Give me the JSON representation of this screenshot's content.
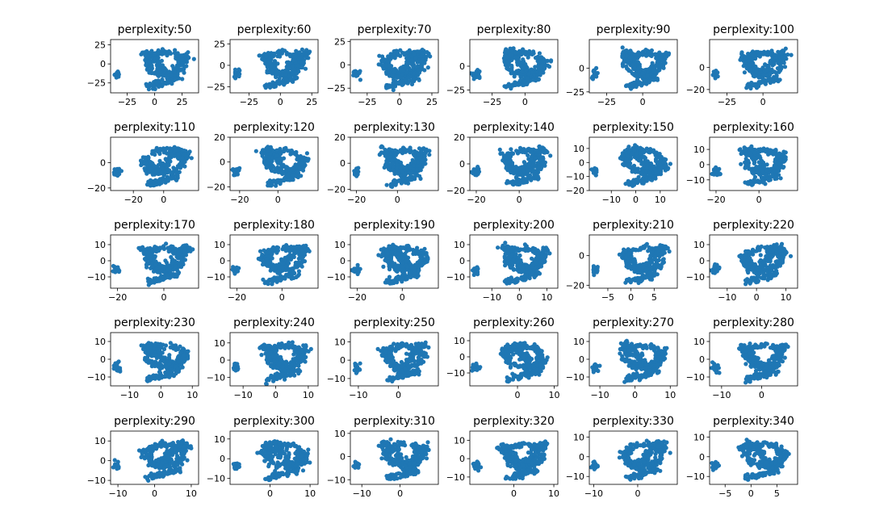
{
  "figure": {
    "background": "#ffffff",
    "marker_color": "#1f77b4"
  },
  "chart_data": [
    {
      "type": "scatter",
      "title": "perplexity:50",
      "xticks": [
        "−25",
        "0",
        "25"
      ],
      "yticks": [
        "25",
        "0",
        "−25"
      ],
      "xlim": [
        -40,
        40
      ],
      "ylim": [
        -38,
        32
      ],
      "seed": 50
    },
    {
      "type": "scatter",
      "title": "perplexity:60",
      "xticks": [
        "−25",
        "0",
        "25"
      ],
      "yticks": [
        "25",
        "0",
        "−25"
      ],
      "xlim": [
        -40,
        30
      ],
      "ylim": [
        -32,
        30
      ],
      "seed": 60
    },
    {
      "type": "scatter",
      "title": "perplexity:70",
      "xticks": [
        "−25",
        "0",
        "25"
      ],
      "yticks": [
        "25",
        "0",
        "−25"
      ],
      "xlim": [
        -38,
        30
      ],
      "ylim": [
        -30,
        27
      ],
      "seed": 70
    },
    {
      "type": "scatter",
      "title": "perplexity:80",
      "xticks": [
        "−25",
        "0"
      ],
      "yticks": [
        "0",
        "−25"
      ],
      "xlim": [
        -42,
        25
      ],
      "ylim": [
        -28,
        28
      ],
      "seed": 80
    },
    {
      "type": "scatter",
      "title": "perplexity:90",
      "xticks": [
        "−25",
        "0"
      ],
      "yticks": [
        "0",
        "−25"
      ],
      "xlim": [
        -37,
        24
      ],
      "ylim": [
        -26,
        30
      ],
      "seed": 90
    },
    {
      "type": "scatter",
      "title": "perplexity:100",
      "xticks": [
        "−25",
        "0"
      ],
      "yticks": [
        "0",
        "−20"
      ],
      "xlim": [
        -37,
        24
      ],
      "ylim": [
        -23,
        25
      ],
      "seed": 100
    },
    {
      "type": "scatter",
      "title": "perplexity:110",
      "xticks": [
        "−20",
        "0"
      ],
      "yticks": [
        "0",
        "−20"
      ],
      "xlim": [
        -35,
        23
      ],
      "ylim": [
        -22,
        20
      ],
      "seed": 110
    },
    {
      "type": "scatter",
      "title": "perplexity:120",
      "xticks": [
        "−20",
        "0"
      ],
      "yticks": [
        "20",
        "0",
        "−20"
      ],
      "xlim": [
        -25,
        21
      ],
      "ylim": [
        -23,
        20
      ],
      "seed": 120
    },
    {
      "type": "scatter",
      "title": "perplexity:130",
      "xticks": [
        "−20",
        "0"
      ],
      "yticks": [
        "20",
        "0",
        "−20"
      ],
      "xlim": [
        -23,
        20
      ],
      "ylim": [
        -21,
        20
      ],
      "seed": 130
    },
    {
      "type": "scatter",
      "title": "perplexity:140",
      "xticks": [
        "−20",
        "0"
      ],
      "yticks": [
        "20",
        "0",
        "−20"
      ],
      "xlim": [
        -23,
        18
      ],
      "ylim": [
        -20,
        20
      ],
      "seed": 140
    },
    {
      "type": "scatter",
      "title": "perplexity:150",
      "xticks": [
        "−10",
        "0",
        "10"
      ],
      "yticks": [
        "10",
        "0",
        "−10",
        "−20"
      ],
      "xlim": [
        -19,
        17
      ],
      "ylim": [
        -20,
        18
      ],
      "seed": 150
    },
    {
      "type": "scatter",
      "title": "perplexity:160",
      "xticks": [
        "−20",
        "0"
      ],
      "yticks": [
        "10",
        "0",
        "−10"
      ],
      "xlim": [
        -23,
        18
      ],
      "ylim": [
        -17,
        18
      ],
      "seed": 160
    },
    {
      "type": "scatter",
      "title": "perplexity:170",
      "xticks": [
        "−20",
        "0"
      ],
      "yticks": [
        "10",
        "0",
        "−10"
      ],
      "xlim": [
        -23,
        15
      ],
      "ylim": [
        -17,
        16
      ],
      "seed": 170
    },
    {
      "type": "scatter",
      "title": "perplexity:180",
      "xticks": [
        "−20",
        "0"
      ],
      "yticks": [
        "10",
        "0",
        "−10"
      ],
      "xlim": [
        -23,
        16
      ],
      "ylim": [
        -17,
        16
      ],
      "seed": 180
    },
    {
      "type": "scatter",
      "title": "perplexity:190",
      "xticks": [
        "−20",
        "0"
      ],
      "yticks": [
        "10",
        "0",
        "−10"
      ],
      "xlim": [
        -23,
        16
      ],
      "ylim": [
        -17,
        16
      ],
      "seed": 190
    },
    {
      "type": "scatter",
      "title": "perplexity:200",
      "xticks": [
        "−10",
        "0",
        "10"
      ],
      "yticks": [
        "10",
        "0",
        "−10"
      ],
      "xlim": [
        -18,
        14
      ],
      "ylim": [
        -17,
        16
      ],
      "seed": 200
    },
    {
      "type": "scatter",
      "title": "perplexity:210",
      "xticks": [
        "−5",
        "0",
        "5"
      ],
      "yticks": [
        "0",
        "−20"
      ],
      "xlim": [
        -9,
        10
      ],
      "ylim": [
        -22,
        14
      ],
      "seed": 210
    },
    {
      "type": "scatter",
      "title": "perplexity:220",
      "xticks": [
        "−10",
        "0",
        "10"
      ],
      "yticks": [
        "10",
        "0",
        "−10"
      ],
      "xlim": [
        -16,
        14
      ],
      "ylim": [
        -17,
        16
      ],
      "seed": 220
    },
    {
      "type": "scatter",
      "title": "perplexity:230",
      "xticks": [
        "−10",
        "0",
        "10"
      ],
      "yticks": [
        "10",
        "0",
        "−10"
      ],
      "xlim": [
        -16,
        12
      ],
      "ylim": [
        -15,
        15
      ],
      "seed": 230
    },
    {
      "type": "scatter",
      "title": "perplexity:240",
      "xticks": [
        "−10",
        "0",
        "10"
      ],
      "yticks": [
        "10",
        "0",
        "−10"
      ],
      "xlim": [
        -14,
        13
      ],
      "ylim": [
        -15,
        16
      ],
      "seed": 240
    },
    {
      "type": "scatter",
      "title": "perplexity:250",
      "xticks": [
        "−10",
        "0"
      ],
      "yticks": [
        "10",
        "0",
        "−10"
      ],
      "xlim": [
        -12,
        10
      ],
      "ylim": [
        -14,
        15
      ],
      "seed": 250
    },
    {
      "type": "scatter",
      "title": "perplexity:260",
      "xticks": [
        "0",
        "10"
      ],
      "yticks": [
        "10",
        "0",
        "−10"
      ],
      "xlim": [
        -13,
        11
      ],
      "ylim": [
        -18,
        15
      ],
      "seed": 260
    },
    {
      "type": "scatter",
      "title": "perplexity:270",
      "xticks": [
        "−10",
        "0",
        "10"
      ],
      "yticks": [
        "10",
        "0",
        "−10"
      ],
      "xlim": [
        -13,
        12
      ],
      "ylim": [
        -15,
        15
      ],
      "seed": 270
    },
    {
      "type": "scatter",
      "title": "perplexity:280",
      "xticks": [
        "−10",
        "0"
      ],
      "yticks": [
        "10",
        "0",
        "−10"
      ],
      "xlim": [
        -13,
        9
      ],
      "ylim": [
        -15,
        15
      ],
      "seed": 280
    },
    {
      "type": "scatter",
      "title": "perplexity:290",
      "xticks": [
        "−10",
        "0",
        "10"
      ],
      "yticks": [
        "10",
        "0",
        "−10"
      ],
      "xlim": [
        -12,
        12
      ],
      "ylim": [
        -12,
        15
      ],
      "seed": 290
    },
    {
      "type": "scatter",
      "title": "perplexity:300",
      "xticks": [
        "0",
        "10"
      ],
      "yticks": [
        "10",
        "0",
        "−10"
      ],
      "xlim": [
        -10,
        12
      ],
      "ylim": [
        -13,
        14
      ],
      "seed": 300
    },
    {
      "type": "scatter",
      "title": "perplexity:310",
      "xticks": [
        "−10",
        "0"
      ],
      "yticks": [
        "10",
        "0",
        "−10"
      ],
      "xlim": [
        -13,
        10
      ],
      "ylim": [
        -12,
        11
      ],
      "seed": 310
    },
    {
      "type": "scatter",
      "title": "perplexity:320",
      "xticks": [
        "0",
        "10"
      ],
      "yticks": [
        "10",
        "0",
        "−10"
      ],
      "xlim": [
        -11,
        11
      ],
      "ylim": [
        -14,
        15
      ],
      "seed": 320
    },
    {
      "type": "scatter",
      "title": "perplexity:330",
      "xticks": [
        "−10",
        "0"
      ],
      "yticks": [
        "10",
        "0",
        "−10"
      ],
      "xlim": [
        -11,
        9
      ],
      "ylim": [
        -14,
        13
      ],
      "seed": 330
    },
    {
      "type": "scatter",
      "title": "perplexity:340",
      "xticks": [
        "−5",
        "0",
        "5"
      ],
      "yticks": [
        "10",
        "0",
        "−10"
      ],
      "xlim": [
        -8,
        9
      ],
      "ylim": [
        -14,
        13
      ],
      "seed": 340
    }
  ]
}
